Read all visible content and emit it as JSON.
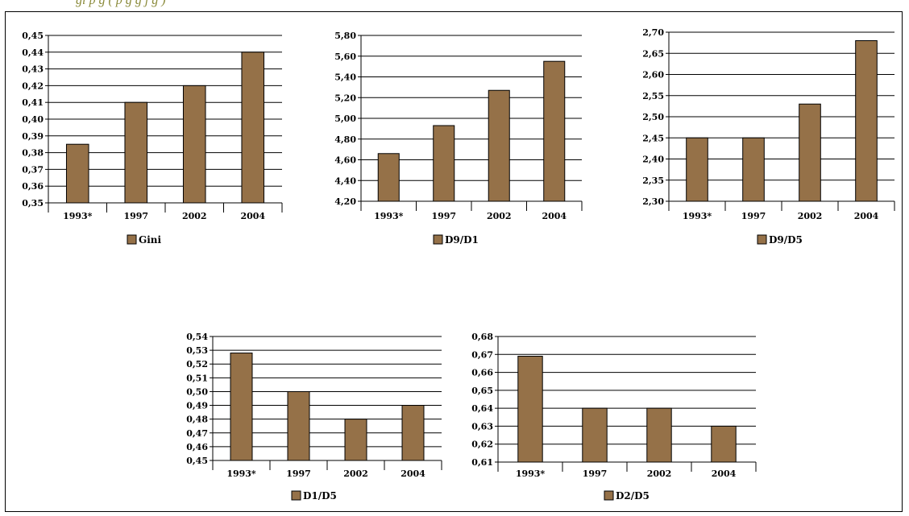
{
  "header": {
    "text": "gi p       g     (   p     g             g       j     g )"
  },
  "colors": {
    "bar": "#957148",
    "bar_stroke": "#000000",
    "grid": "#000000"
  },
  "chart_data": [
    {
      "type": "bar",
      "legend": "Gini",
      "categories": [
        "1993*",
        "1997",
        "2002",
        "2004"
      ],
      "values": [
        0.385,
        0.41,
        0.42,
        0.44
      ],
      "ylim": [
        0.35,
        0.45
      ],
      "yticks": [
        "0,35",
        "0,36",
        "0,37",
        "0,38",
        "0,39",
        "0,40",
        "0,41",
        "0,42",
        "0,43",
        "0,44",
        "0,45"
      ],
      "grid": true,
      "legend_placement": "bottom"
    },
    {
      "type": "bar",
      "legend": "D9/D1",
      "categories": [
        "1993*",
        "1997",
        "2002",
        "2004"
      ],
      "values": [
        4.66,
        4.93,
        5.27,
        5.55
      ],
      "ylim": [
        4.2,
        5.8
      ],
      "yticks": [
        "4,20",
        "4,40",
        "4,60",
        "4,80",
        "5,00",
        "5,20",
        "5,40",
        "5,60",
        "5,80"
      ],
      "grid": true,
      "legend_placement": "bottom"
    },
    {
      "type": "bar",
      "legend": "D9/D5",
      "categories": [
        "1993*",
        "1997",
        "2002",
        "2004"
      ],
      "values": [
        2.45,
        2.45,
        2.53,
        2.68
      ],
      "ylim": [
        2.3,
        2.7
      ],
      "yticks": [
        "2,30",
        "2,35",
        "2,40",
        "2,45",
        "2,50",
        "2,55",
        "2,60",
        "2,65",
        "2,70"
      ],
      "grid": true,
      "legend_placement": "bottom"
    },
    {
      "type": "bar",
      "legend": "D1/D5",
      "categories": [
        "1993*",
        "1997",
        "2002",
        "2004"
      ],
      "values": [
        0.528,
        0.5,
        0.48,
        0.49
      ],
      "ylim": [
        0.45,
        0.54
      ],
      "yticks": [
        "0,45",
        "0,46",
        "0,47",
        "0,48",
        "0,49",
        "0,50",
        "0,51",
        "0,52",
        "0,53",
        "0,54"
      ],
      "grid": true,
      "legend_placement": "bottom"
    },
    {
      "type": "bar",
      "legend": "D2/D5",
      "categories": [
        "1993*",
        "1997",
        "2002",
        "2004"
      ],
      "values": [
        0.669,
        0.64,
        0.64,
        0.63
      ],
      "ylim": [
        0.61,
        0.68
      ],
      "yticks": [
        "0,61",
        "0,62",
        "0,63",
        "0,64",
        "0,65",
        "0,66",
        "0,67",
        "0,68"
      ],
      "grid": true,
      "legend_placement": "bottom"
    }
  ]
}
